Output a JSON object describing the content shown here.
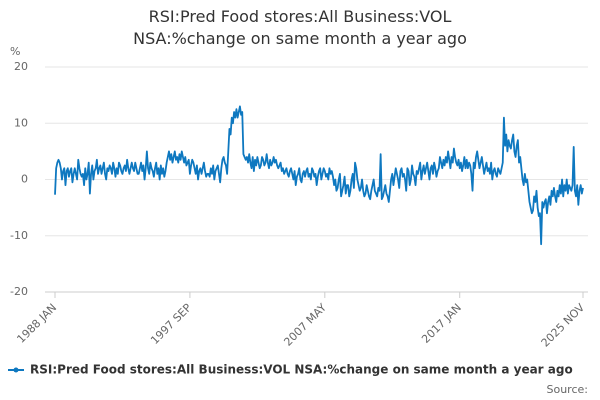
{
  "chart_data": {
    "type": "line",
    "title": "RSI:Pred Food stores:All Business:VOL NSA:%change on same month a year ago",
    "y_label": "%",
    "source": "Source:",
    "categories": [
      "1988 JAN",
      null,
      null,
      null,
      null,
      null,
      null,
      null,
      null,
      null,
      null,
      null,
      null,
      null,
      null,
      null,
      null,
      null,
      null,
      null,
      null,
      null,
      null,
      null,
      null,
      null,
      null,
      null,
      null,
      null,
      null,
      null,
      null,
      null,
      null,
      null,
      null,
      null,
      null,
      null,
      null,
      null,
      null,
      null,
      null,
      null,
      null,
      null,
      null,
      null,
      null,
      null,
      null,
      null,
      null,
      null,
      null,
      null,
      null,
      null,
      null,
      null,
      null,
      null,
      null,
      null,
      null,
      null,
      null,
      null,
      null,
      null,
      null,
      null,
      null,
      null,
      null,
      null,
      null,
      null,
      null,
      null,
      null,
      null,
      null,
      null,
      null,
      null,
      null,
      null,
      null,
      null,
      null,
      null,
      null,
      null,
      null,
      null,
      null,
      null,
      null,
      null,
      null,
      null,
      null,
      null,
      null,
      null,
      null,
      null,
      null,
      null,
      null,
      null,
      null,
      null,
      "1997 SEP",
      null,
      null,
      null,
      null,
      null,
      null,
      null,
      null,
      null,
      null,
      null,
      null,
      null,
      null,
      null,
      null,
      null,
      null,
      null,
      null,
      null,
      null,
      null,
      null,
      null,
      null,
      null,
      null,
      null,
      null,
      null,
      null,
      null,
      null,
      null,
      null,
      null,
      null,
      null,
      null,
      null,
      null,
      null,
      null,
      null,
      null,
      null,
      null,
      null,
      null,
      null,
      null,
      null,
      null,
      null,
      null,
      null,
      null,
      null,
      null,
      null,
      null,
      null,
      null,
      null,
      null,
      null,
      null,
      null,
      null,
      null,
      null,
      null,
      null,
      null,
      null,
      null,
      null,
      null,
      null,
      null,
      null,
      null,
      null,
      null,
      null,
      null,
      null,
      null,
      null,
      null,
      null,
      null,
      null,
      null,
      null,
      null,
      null,
      null,
      null,
      null,
      null,
      null,
      null,
      null,
      null,
      null,
      null,
      null,
      null,
      null,
      null,
      null,
      null,
      null,
      "2007 MAY",
      null,
      null,
      null,
      null,
      null,
      null,
      null,
      null,
      null,
      null,
      null,
      null,
      null,
      null,
      null,
      null,
      null,
      null,
      null,
      null,
      null,
      null,
      null,
      null,
      null,
      null,
      null,
      null,
      null,
      null,
      null,
      null,
      null,
      null,
      null,
      null,
      null,
      null,
      null,
      null,
      null,
      null,
      null,
      null,
      null,
      null,
      null,
      null,
      null,
      null,
      null,
      null,
      null,
      null,
      null,
      null,
      null,
      null,
      null,
      null,
      null,
      null,
      null,
      null,
      null,
      null,
      null,
      null,
      null,
      null,
      null,
      null,
      null,
      null,
      null,
      null,
      null,
      null,
      null,
      null,
      null,
      null,
      null,
      null,
      null,
      null,
      null,
      null,
      null,
      null,
      null,
      null,
      null,
      null,
      null,
      null,
      null,
      null,
      null,
      null,
      null,
      null,
      null,
      null,
      null,
      null,
      null,
      null,
      null,
      null,
      null,
      null,
      null,
      null,
      null,
      "2017 JAN",
      null,
      null,
      null,
      null,
      null,
      null,
      null,
      null,
      null,
      null,
      null,
      null,
      null,
      null,
      null,
      null,
      null,
      null,
      null,
      null,
      null,
      null,
      null,
      null,
      null,
      null,
      null,
      null,
      null,
      null,
      null,
      null,
      null,
      null,
      null,
      null,
      null,
      null,
      null,
      null,
      null,
      null,
      null,
      null,
      null,
      null,
      null,
      null,
      null,
      null,
      null,
      null,
      null,
      null,
      null,
      null,
      null,
      null,
      null,
      null,
      null,
      null,
      null,
      null,
      null,
      null,
      null,
      null,
      null,
      null,
      null,
      null,
      null,
      null,
      null,
      null,
      null,
      null,
      null,
      null,
      null,
      null,
      null,
      null,
      null,
      null,
      null,
      null,
      null,
      null,
      null,
      null,
      null,
      null,
      null,
      null,
      null,
      null,
      null,
      null,
      null,
      null,
      null,
      null,
      null,
      "2025 NOV"
    ],
    "series": [
      {
        "name": "RSI:Pred Food stores:All Business:VOL NSA:%change on same month a year ago",
        "color": "#0e78c0",
        "values": [
          -2.7,
          2,
          3,
          3.5,
          3,
          2,
          0,
          1.5,
          2,
          -1,
          1.5,
          2,
          0.5,
          1.5,
          2,
          -0.5,
          1,
          2,
          1,
          0,
          3.5,
          2,
          1,
          0.5,
          1,
          -1,
          2,
          0,
          1,
          3,
          -2.5,
          1,
          2.5,
          0,
          1.5,
          2,
          3.5,
          1,
          2,
          2.5,
          1,
          2,
          3,
          1,
          0,
          2,
          1.5,
          2.5,
          2,
          1,
          3,
          2,
          0.5,
          2,
          1,
          3,
          2.5,
          1.5,
          1,
          2,
          2.5,
          1.5,
          3.5,
          2,
          1,
          2,
          3,
          2,
          1.5,
          3,
          2,
          1,
          1,
          2,
          3,
          1.5,
          2.5,
          0,
          2,
          5,
          2,
          1,
          3,
          2,
          1.5,
          0.5,
          2,
          3,
          1,
          2,
          0,
          2.5,
          1,
          2,
          0.5,
          1.5,
          3,
          4,
          5,
          3.5,
          4.5,
          3,
          4,
          5,
          3.5,
          4,
          3,
          4.5,
          3.5,
          5,
          4,
          3,
          4,
          2.5,
          3,
          3.5,
          1,
          2.5,
          3.5,
          3,
          2,
          1,
          2.5,
          0,
          1.5,
          2,
          1,
          2,
          3,
          1.5,
          0.5,
          1,
          1,
          0.5,
          2,
          1,
          2.5,
          0,
          1.5,
          2,
          2.5,
          1,
          -0.5,
          2,
          3.5,
          4,
          3,
          2.5,
          1,
          5,
          9,
          8,
          11,
          10,
          12,
          11,
          12.5,
          11,
          12,
          13,
          11.5,
          12,
          4.5,
          4,
          3.5,
          4,
          3,
          4.5,
          3,
          2,
          4,
          1.5,
          3.5,
          2.5,
          4,
          3,
          2,
          2.5,
          4,
          3.5,
          2.5,
          3,
          4.5,
          3,
          2,
          3.5,
          2.5,
          3,
          4,
          3,
          3.5,
          2.5,
          2,
          2.5,
          3,
          1.5,
          2,
          1,
          1.5,
          2,
          1,
          0.5,
          1.5,
          2,
          1,
          0,
          1.5,
          -1,
          0.5,
          1,
          2,
          0,
          -0.5,
          1,
          1.5,
          0.5,
          1.5,
          2,
          0.5,
          1,
          0,
          2,
          1.5,
          0.5,
          1,
          -1,
          0.5,
          1.5,
          2,
          0,
          1,
          2,
          1.5,
          0.5,
          1,
          0,
          2,
          1,
          1.5,
          0.5,
          -1,
          0,
          -2,
          -1.5,
          0,
          1,
          -3,
          -2,
          -1,
          0.5,
          -2.5,
          -1,
          -1,
          -3,
          -2,
          0,
          1,
          -1.5,
          3,
          2,
          0,
          -1,
          -2,
          -1.5,
          0,
          -2,
          -3,
          -2.5,
          -1,
          -2,
          -3,
          -3.5,
          -2,
          -1,
          0,
          -2,
          -2.5,
          -3,
          -1.5,
          -2,
          4.5,
          -3.5,
          -3,
          -2,
          -1,
          -2.5,
          -3,
          -4,
          -2,
          0,
          1,
          -1,
          0.5,
          2,
          1,
          0,
          -1.5,
          1.5,
          2,
          0.5,
          1,
          0,
          -2,
          2,
          1.5,
          -1,
          0,
          2.5,
          1,
          0.5,
          -1,
          1.5,
          1,
          2,
          3,
          0,
          1.5,
          2.5,
          1,
          2,
          3,
          1.5,
          0,
          2,
          2.5,
          1,
          3,
          2,
          0.5,
          1.5,
          2,
          4,
          3,
          2,
          3.5,
          2.5,
          4,
          3,
          5,
          3.5,
          2,
          4,
          3,
          5.5,
          4,
          3,
          2.5,
          3.5,
          2,
          3,
          1.5,
          2.5,
          4,
          2,
          3.5,
          2,
          3,
          2.5,
          1,
          -2,
          3,
          2,
          4,
          5,
          3.5,
          2,
          3,
          4,
          2.5,
          1,
          2,
          3,
          1.5,
          2,
          1,
          3,
          0,
          1.5,
          2,
          1,
          0.5,
          2,
          1.5,
          1,
          2,
          3,
          11,
          6,
          8,
          5,
          7,
          6,
          5.5,
          7,
          8,
          5,
          4,
          6,
          7,
          3,
          4,
          2,
          0,
          -1,
          1,
          -0.5,
          0,
          -2,
          -4,
          -5,
          -6,
          -5.5,
          -3,
          -4,
          -2,
          -5,
          -6.5,
          -6,
          -11.5,
          -4,
          -5,
          -4,
          -3.5,
          -6,
          -4,
          -3,
          -4.5,
          -2,
          -3,
          -1.5,
          -3,
          -4,
          -2,
          -3,
          -1,
          -2.5,
          0,
          -3,
          -1,
          -2,
          0,
          -2.5,
          -1,
          -1.5,
          -2,
          -1,
          5.8,
          -2,
          -3,
          -1,
          -4.5,
          -2,
          -1,
          -2.5,
          -1.5
        ]
      }
    ],
    "ylim": [
      -20,
      20
    ],
    "yticks": [
      -20,
      -10,
      0,
      10,
      20
    ],
    "grid": true
  }
}
